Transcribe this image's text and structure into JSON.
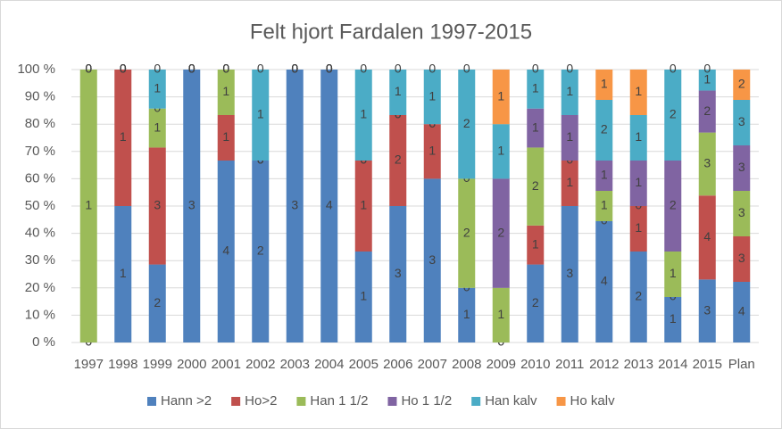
{
  "chart_data": {
    "type": "bar",
    "stack": "percent",
    "title": "Felt hjort Fardalen 1997-2015",
    "categories": [
      "1997",
      "1998",
      "1999",
      "2000",
      "2001",
      "2002",
      "2003",
      "2004",
      "2005",
      "2006",
      "2007",
      "2008",
      "2009",
      "2010",
      "2011",
      "2012",
      "2013",
      "2014",
      "2015",
      "Plan"
    ],
    "series": [
      {
        "name": "Hann >2",
        "color": "#4f81bd",
        "values": [
          0,
          1,
          2,
          3,
          4,
          2,
          3,
          4,
          1,
          3,
          3,
          1,
          0,
          2,
          3,
          4,
          2,
          1,
          3,
          4
        ]
      },
      {
        "name": "Ho>2",
        "color": "#c0504d",
        "values": [
          0,
          1,
          3,
          0,
          1,
          0,
          0,
          0,
          1,
          2,
          1,
          0,
          0,
          1,
          1,
          0,
          1,
          0,
          4,
          3
        ]
      },
      {
        "name": "Han 1 1/2",
        "color": "#9bbb59",
        "values": [
          1,
          0,
          1,
          0,
          1,
          0,
          0,
          0,
          0,
          0,
          0,
          2,
          1,
          2,
          0,
          1,
          0,
          1,
          3,
          3
        ]
      },
      {
        "name": "Ho 1 1/2",
        "color": "#8064a2",
        "values": [
          0,
          0,
          0,
          0,
          0,
          0,
          0,
          0,
          0,
          0,
          0,
          0,
          2,
          1,
          1,
          1,
          1,
          2,
          2,
          3
        ]
      },
      {
        "name": "Han kalv",
        "color": "#4bacc6",
        "values": [
          0,
          0,
          1,
          0,
          0,
          1,
          0,
          0,
          1,
          1,
          1,
          2,
          1,
          1,
          1,
          2,
          1,
          2,
          1,
          3
        ]
      },
      {
        "name": "Ho kalv",
        "color": "#f79646",
        "values": [
          0,
          0,
          0,
          0,
          0,
          0,
          0,
          0,
          0,
          0,
          0,
          0,
          1,
          0,
          0,
          1,
          1,
          0,
          0,
          2
        ]
      }
    ],
    "ylim": [
      0,
      100
    ],
    "yticks": [
      {
        "value": 0,
        "label": "0 %"
      },
      {
        "value": 10,
        "label": "10 %"
      },
      {
        "value": 20,
        "label": "20 %"
      },
      {
        "value": 30,
        "label": "30 %"
      },
      {
        "value": 40,
        "label": "40 %"
      },
      {
        "value": 50,
        "label": "50 %"
      },
      {
        "value": 60,
        "label": "60 %"
      },
      {
        "value": 70,
        "label": "70 %"
      },
      {
        "value": 80,
        "label": "80 %"
      },
      {
        "value": 90,
        "label": "90 %"
      },
      {
        "value": 100,
        "label": "100 %"
      }
    ],
    "grid": true,
    "legend": "bottom"
  }
}
